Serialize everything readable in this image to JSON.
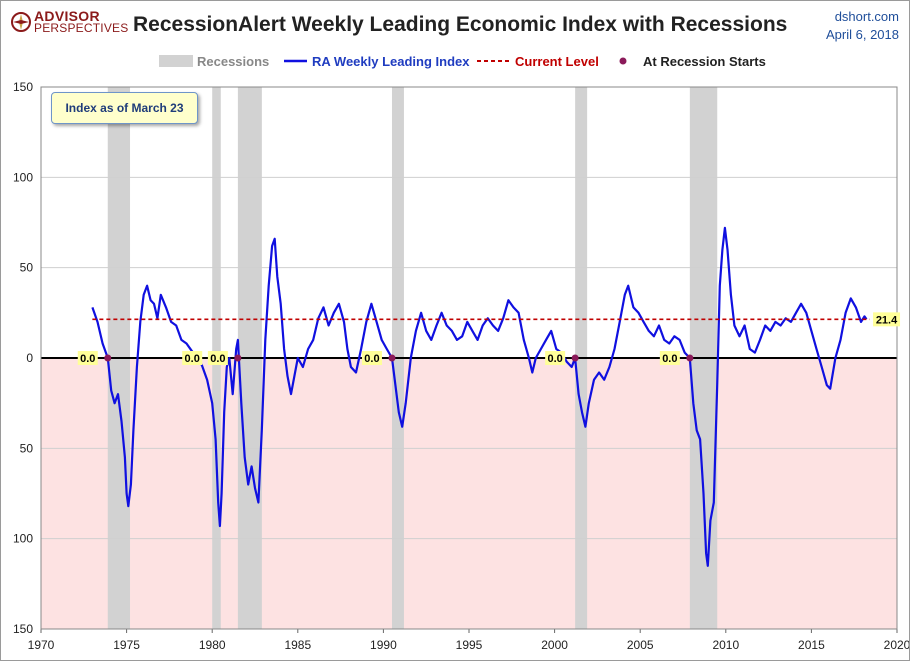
{
  "header": {
    "brand_line1": "ADVISOR",
    "brand_line2": "PERSPECTIVES",
    "title": "RecessionAlert Weekly Leading Economic Index with Recessions",
    "site": "dshort.com",
    "date": "April 6, 2018"
  },
  "annotation": "Index as of March 23",
  "colors": {
    "series": "#1010e0",
    "current_level": "#c00000",
    "recession_band": "#d2d2d2",
    "negative_zone": "#fde2e2",
    "marker": "#8b1a5a",
    "label_bg": "#ffff99"
  },
  "chart_data": {
    "type": "line",
    "title": "RecessionAlert Weekly Leading Economic Index with Recessions",
    "xlim": [
      1970,
      2020
    ],
    "ylim": [
      -150,
      150
    ],
    "x_ticks": [
      1970,
      1975,
      1980,
      1985,
      1990,
      1995,
      2000,
      2005,
      2010,
      2015,
      2020
    ],
    "y_ticks": [
      150,
      100,
      50,
      0,
      -50,
      -100,
      -150
    ],
    "y_tick_labels": [
      "150",
      "100",
      "50",
      "0",
      "50",
      "100",
      "150"
    ],
    "legend": {
      "placement": "top",
      "items": [
        "Recessions",
        "RA Weekly Leading Index",
        "Current Level",
        "At Recession Starts"
      ]
    },
    "recessions": [
      [
        1973.9,
        1975.2
      ],
      [
        1980.0,
        1980.5
      ],
      [
        1981.5,
        1982.9
      ],
      [
        1990.5,
        1991.2
      ],
      [
        2001.2,
        2001.9
      ],
      [
        2007.9,
        2009.5
      ]
    ],
    "current_level": 21.4,
    "current_level_label": "21.4",
    "recession_starts": [
      {
        "x": 1973.9,
        "value": 0,
        "label": "0.0"
      },
      {
        "x": 1980.0,
        "value": 0,
        "label": "0.0"
      },
      {
        "x": 1981.5,
        "value": 0,
        "label": "0.0"
      },
      {
        "x": 1990.5,
        "value": 0,
        "label": "0.0"
      },
      {
        "x": 2001.2,
        "value": 0,
        "label": "0.0"
      },
      {
        "x": 2007.9,
        "value": 0,
        "label": "0.0"
      }
    ],
    "series": [
      {
        "name": "RA Weekly Leading Index",
        "points": [
          [
            1973.0,
            28
          ],
          [
            1973.3,
            20
          ],
          [
            1973.6,
            8
          ],
          [
            1973.9,
            0
          ],
          [
            1974.1,
            -18
          ],
          [
            1974.3,
            -25
          ],
          [
            1974.5,
            -20
          ],
          [
            1974.7,
            -35
          ],
          [
            1974.9,
            -55
          ],
          [
            1975.0,
            -75
          ],
          [
            1975.1,
            -82
          ],
          [
            1975.25,
            -70
          ],
          [
            1975.4,
            -40
          ],
          [
            1975.6,
            -5
          ],
          [
            1975.8,
            20
          ],
          [
            1976.0,
            35
          ],
          [
            1976.2,
            40
          ],
          [
            1976.4,
            32
          ],
          [
            1976.6,
            30
          ],
          [
            1976.8,
            22
          ],
          [
            1977.0,
            35
          ],
          [
            1977.3,
            28
          ],
          [
            1977.6,
            20
          ],
          [
            1977.9,
            18
          ],
          [
            1978.2,
            10
          ],
          [
            1978.5,
            8
          ],
          [
            1978.8,
            4
          ],
          [
            1979.1,
            0
          ],
          [
            1979.4,
            -4
          ],
          [
            1979.7,
            -12
          ],
          [
            1980.0,
            -25
          ],
          [
            1980.2,
            -45
          ],
          [
            1980.35,
            -80
          ],
          [
            1980.45,
            -93
          ],
          [
            1980.55,
            -75
          ],
          [
            1980.7,
            -30
          ],
          [
            1980.85,
            -5
          ],
          [
            1981.0,
            0
          ],
          [
            1981.2,
            -20
          ],
          [
            1981.4,
            5
          ],
          [
            1981.5,
            10
          ],
          [
            1981.7,
            -25
          ],
          [
            1981.9,
            -55
          ],
          [
            1982.1,
            -70
          ],
          [
            1982.3,
            -60
          ],
          [
            1982.5,
            -72
          ],
          [
            1982.7,
            -80
          ],
          [
            1982.9,
            -40
          ],
          [
            1983.1,
            10
          ],
          [
            1983.3,
            40
          ],
          [
            1983.5,
            62
          ],
          [
            1983.65,
            66
          ],
          [
            1983.8,
            45
          ],
          [
            1984.0,
            30
          ],
          [
            1984.2,
            5
          ],
          [
            1984.4,
            -10
          ],
          [
            1984.6,
            -20
          ],
          [
            1984.8,
            -10
          ],
          [
            1985.0,
            0
          ],
          [
            1985.3,
            -5
          ],
          [
            1985.6,
            5
          ],
          [
            1985.9,
            10
          ],
          [
            1986.2,
            22
          ],
          [
            1986.5,
            28
          ],
          [
            1986.8,
            18
          ],
          [
            1987.1,
            25
          ],
          [
            1987.4,
            30
          ],
          [
            1987.7,
            20
          ],
          [
            1987.9,
            5
          ],
          [
            1988.1,
            -5
          ],
          [
            1988.4,
            -8
          ],
          [
            1988.7,
            5
          ],
          [
            1989.0,
            20
          ],
          [
            1989.3,
            30
          ],
          [
            1989.6,
            20
          ],
          [
            1989.9,
            10
          ],
          [
            1990.2,
            5
          ],
          [
            1990.5,
            0
          ],
          [
            1990.7,
            -15
          ],
          [
            1990.9,
            -30
          ],
          [
            1991.1,
            -38
          ],
          [
            1991.3,
            -25
          ],
          [
            1991.6,
            0
          ],
          [
            1991.9,
            15
          ],
          [
            1992.2,
            25
          ],
          [
            1992.5,
            15
          ],
          [
            1992.8,
            10
          ],
          [
            1993.1,
            18
          ],
          [
            1993.4,
            25
          ],
          [
            1993.7,
            18
          ],
          [
            1994.0,
            15
          ],
          [
            1994.3,
            10
          ],
          [
            1994.6,
            12
          ],
          [
            1994.9,
            20
          ],
          [
            1995.2,
            15
          ],
          [
            1995.5,
            10
          ],
          [
            1995.8,
            18
          ],
          [
            1996.1,
            22
          ],
          [
            1996.4,
            18
          ],
          [
            1996.7,
            15
          ],
          [
            1997.0,
            22
          ],
          [
            1997.3,
            32
          ],
          [
            1997.6,
            28
          ],
          [
            1997.9,
            25
          ],
          [
            1998.2,
            10
          ],
          [
            1998.5,
            0
          ],
          [
            1998.7,
            -8
          ],
          [
            1998.9,
            0
          ],
          [
            1999.2,
            5
          ],
          [
            1999.5,
            10
          ],
          [
            1999.8,
            15
          ],
          [
            2000.1,
            5
          ],
          [
            2000.4,
            3
          ],
          [
            2000.7,
            -2
          ],
          [
            2001.0,
            -5
          ],
          [
            2001.2,
            0
          ],
          [
            2001.4,
            -20
          ],
          [
            2001.6,
            -30
          ],
          [
            2001.8,
            -38
          ],
          [
            2002.0,
            -25
          ],
          [
            2002.3,
            -12
          ],
          [
            2002.6,
            -8
          ],
          [
            2002.9,
            -12
          ],
          [
            2003.2,
            -5
          ],
          [
            2003.5,
            5
          ],
          [
            2003.8,
            20
          ],
          [
            2004.1,
            35
          ],
          [
            2004.3,
            40
          ],
          [
            2004.6,
            28
          ],
          [
            2004.9,
            25
          ],
          [
            2005.2,
            20
          ],
          [
            2005.5,
            15
          ],
          [
            2005.8,
            12
          ],
          [
            2006.1,
            18
          ],
          [
            2006.4,
            10
          ],
          [
            2006.7,
            8
          ],
          [
            2007.0,
            12
          ],
          [
            2007.3,
            10
          ],
          [
            2007.6,
            3
          ],
          [
            2007.9,
            0
          ],
          [
            2008.1,
            -25
          ],
          [
            2008.3,
            -40
          ],
          [
            2008.5,
            -45
          ],
          [
            2008.7,
            -75
          ],
          [
            2008.85,
            -108
          ],
          [
            2008.95,
            -115
          ],
          [
            2009.1,
            -90
          ],
          [
            2009.3,
            -80
          ],
          [
            2009.5,
            -15
          ],
          [
            2009.65,
            40
          ],
          [
            2009.8,
            60
          ],
          [
            2009.95,
            72
          ],
          [
            2010.1,
            60
          ],
          [
            2010.3,
            35
          ],
          [
            2010.5,
            18
          ],
          [
            2010.8,
            12
          ],
          [
            2011.1,
            18
          ],
          [
            2011.4,
            5
          ],
          [
            2011.7,
            3
          ],
          [
            2012.0,
            10
          ],
          [
            2012.3,
            18
          ],
          [
            2012.6,
            15
          ],
          [
            2012.9,
            20
          ],
          [
            2013.2,
            18
          ],
          [
            2013.5,
            22
          ],
          [
            2013.8,
            20
          ],
          [
            2014.1,
            25
          ],
          [
            2014.4,
            30
          ],
          [
            2014.7,
            25
          ],
          [
            2015.0,
            15
          ],
          [
            2015.3,
            5
          ],
          [
            2015.6,
            -5
          ],
          [
            2015.9,
            -15
          ],
          [
            2016.1,
            -17
          ],
          [
            2016.4,
            0
          ],
          [
            2016.7,
            10
          ],
          [
            2017.0,
            25
          ],
          [
            2017.3,
            33
          ],
          [
            2017.6,
            28
          ],
          [
            2017.9,
            20
          ],
          [
            2018.1,
            23
          ],
          [
            2018.22,
            21.4
          ]
        ]
      }
    ]
  }
}
